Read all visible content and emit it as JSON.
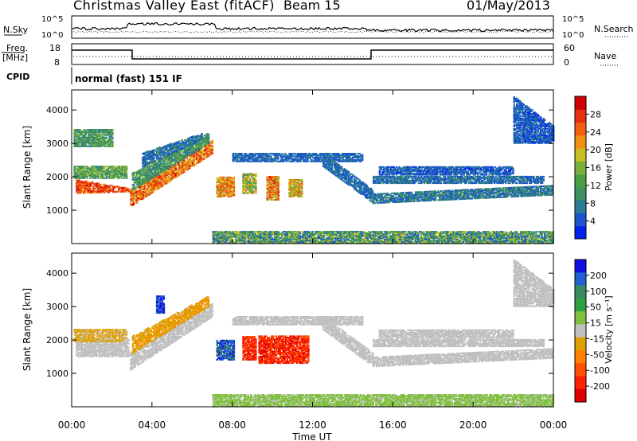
{
  "header": {
    "title": "Christmas Valley East (fitACF)",
    "beam": "Beam 15",
    "date": "01/May/2013"
  },
  "panels": {
    "nsky": {
      "label": "N.Sky",
      "ticks": [
        "10^5",
        "10^0"
      ],
      "right_label": "N.Search"
    },
    "freq": {
      "label": "Freq.",
      "unit": "[MHz]",
      "ticks_left": [
        "18",
        "8"
      ],
      "ticks_right": [
        "60",
        "0"
      ],
      "right_label": "Nave"
    },
    "cpid": {
      "label": "CPID",
      "value": "normal (fast) 151 IF"
    }
  },
  "colors": {
    "power": [
      "#0022ee",
      "#1a55cc",
      "#2a7a9a",
      "#3f9060",
      "#4aa040",
      "#7ab040",
      "#c8c020",
      "#f09010",
      "#f06010",
      "#e83010",
      "#d00000"
    ],
    "velocity": [
      "#1010e0",
      "#2060d0",
      "#3a8a60",
      "#2ea040",
      "#80c040",
      "#c0c0c0",
      "#e0a000",
      "#ff8000",
      "#ff5000",
      "#ff2000",
      "#e00000"
    ]
  },
  "chart_data": [
    {
      "type": "heatmap",
      "name": "power",
      "ylabel": "Slant Range [km]",
      "yticks": [
        1000,
        2000,
        3000,
        4000
      ],
      "ylim": [
        0,
        4600
      ],
      "xlim": [
        0,
        24
      ],
      "colorbar": {
        "label": "Power [dB]",
        "ticks": [
          4,
          8,
          12,
          16,
          20,
          24,
          28
        ],
        "range": [
          0,
          32
        ]
      },
      "bands": [
        {
          "t0": 0.2,
          "t1": 2.8,
          "r0": 1500,
          "r1": 1900,
          "ra": 1550,
          "rb": 1650,
          "v0": 22,
          "v1": 30
        },
        {
          "t0": 0.1,
          "t1": 2.7,
          "r0": 1950,
          "r1": 2300,
          "v0": 8,
          "v1": 18
        },
        {
          "t0": 0.1,
          "t1": 2.0,
          "r0": 2900,
          "r1": 3400,
          "v0": 6,
          "v1": 16
        },
        {
          "t0": 2.9,
          "t1": 7.0,
          "r0": 1100,
          "r1": 1600,
          "ra": 2700,
          "rb": 3100,
          "v0": 18,
          "v1": 30
        },
        {
          "t0": 3.0,
          "t1": 6.8,
          "r0": 1600,
          "r1": 2100,
          "ra": 3000,
          "rb": 3300,
          "v0": 6,
          "v1": 16
        },
        {
          "t0": 3.5,
          "t1": 6.5,
          "r0": 2300,
          "r1": 2700,
          "ra": 3100,
          "rb": 3300,
          "v0": 3,
          "v1": 10
        },
        {
          "t0": 7.2,
          "t1": 8.1,
          "r0": 1400,
          "r1": 2000,
          "v0": 16,
          "v1": 28
        },
        {
          "t0": 8.5,
          "t1": 9.2,
          "r0": 1500,
          "r1": 2100,
          "v0": 10,
          "v1": 24
        },
        {
          "t0": 9.7,
          "t1": 10.3,
          "r0": 1300,
          "r1": 2000,
          "v0": 16,
          "v1": 30
        },
        {
          "t0": 10.8,
          "t1": 11.5,
          "r0": 1400,
          "r1": 1900,
          "v0": 14,
          "v1": 26
        },
        {
          "t0": 8.0,
          "t1": 14.5,
          "r0": 2450,
          "r1": 2700,
          "v0": 3,
          "v1": 8
        },
        {
          "t0": 12.5,
          "t1": 15.0,
          "r0": 2300,
          "r1": 2700,
          "ra": 1200,
          "rb": 1600,
          "v0": 3,
          "v1": 9
        },
        {
          "t0": 15.0,
          "t1": 23.9,
          "r0": 1200,
          "r1": 1500,
          "ra": 1450,
          "rb": 1750,
          "v0": 3,
          "v1": 12
        },
        {
          "t0": 15.0,
          "t1": 23.5,
          "r0": 1800,
          "r1": 2000,
          "v0": 3,
          "v1": 10
        },
        {
          "t0": 15.3,
          "t1": 22.0,
          "r0": 2050,
          "r1": 2300,
          "v0": 2,
          "v1": 8
        },
        {
          "t0": 22.0,
          "t1": 24.0,
          "r0": 3000,
          "r1": 4400,
          "ra": 3000,
          "rb": 3500,
          "v0": 2,
          "v1": 8
        },
        {
          "t0": 7.0,
          "t1": 24.0,
          "r0": 0,
          "r1": 350,
          "v0": 3,
          "v1": 20
        }
      ]
    },
    {
      "type": "heatmap",
      "name": "velocity",
      "ylabel": "Slant Range [km]",
      "xlabel": "Time UT",
      "yticks": [
        1000,
        2000,
        3000,
        4000
      ],
      "ylim": [
        0,
        4600
      ],
      "xlim": [
        0,
        24
      ],
      "xticks": [
        "00:00",
        "04:00",
        "08:00",
        "12:00",
        "16:00",
        "20:00",
        "00:00"
      ],
      "colorbar": {
        "label": "Velocity [m s⁻¹]",
        "ticks": [
          "200",
          "100",
          "50",
          "15",
          "-15",
          "-50",
          "-100",
          "-200"
        ],
        "range": [
          -250,
          250
        ]
      },
      "bands": [
        {
          "t0": 0.2,
          "t1": 2.8,
          "r0": 1500,
          "r1": 2000,
          "v0": -20,
          "v1": 20
        },
        {
          "t0": 0.1,
          "t1": 2.7,
          "r0": 1950,
          "r1": 2300,
          "v0": -60,
          "v1": -10
        },
        {
          "t0": 2.9,
          "t1": 7.0,
          "r0": 1100,
          "r1": 1600,
          "ra": 2700,
          "rb": 3100,
          "v0": -20,
          "v1": 20
        },
        {
          "t0": 3.0,
          "t1": 6.8,
          "r0": 1600,
          "r1": 2100,
          "ra": 3000,
          "rb": 3300,
          "v0": -80,
          "v1": -20
        },
        {
          "t0": 4.2,
          "t1": 4.6,
          "r0": 2800,
          "r1": 3300,
          "v0": 150,
          "v1": 250
        },
        {
          "t0": 7.2,
          "t1": 8.1,
          "r0": 1400,
          "r1": 2000,
          "v0": 120,
          "v1": 240
        },
        {
          "t0": 8.5,
          "t1": 9.2,
          "r0": 1400,
          "r1": 2100,
          "v0": -230,
          "v1": -120
        },
        {
          "t0": 9.3,
          "t1": 11.8,
          "r0": 1300,
          "r1": 2100,
          "v0": -240,
          "v1": -120
        },
        {
          "t0": 8.0,
          "t1": 14.5,
          "r0": 2450,
          "r1": 2700,
          "v0": -15,
          "v1": 15
        },
        {
          "t0": 12.5,
          "t1": 15.0,
          "r0": 2300,
          "r1": 2700,
          "ra": 1200,
          "rb": 1600,
          "v0": -20,
          "v1": 20
        },
        {
          "t0": 15.0,
          "t1": 23.9,
          "r0": 1200,
          "r1": 1500,
          "ra": 1450,
          "rb": 1750,
          "v0": -15,
          "v1": 15
        },
        {
          "t0": 15.0,
          "t1": 23.5,
          "r0": 1800,
          "r1": 2000,
          "v0": -15,
          "v1": 15
        },
        {
          "t0": 15.3,
          "t1": 22.0,
          "r0": 2050,
          "r1": 2300,
          "v0": -15,
          "v1": 15
        },
        {
          "t0": 22.0,
          "t1": 24.0,
          "r0": 3000,
          "r1": 4400,
          "ra": 3000,
          "rb": 3500,
          "v0": -15,
          "v1": 15
        },
        {
          "t0": 7.0,
          "t1": 24.0,
          "r0": 0,
          "r1": 350,
          "v0": 15,
          "v1": 60
        }
      ]
    }
  ]
}
